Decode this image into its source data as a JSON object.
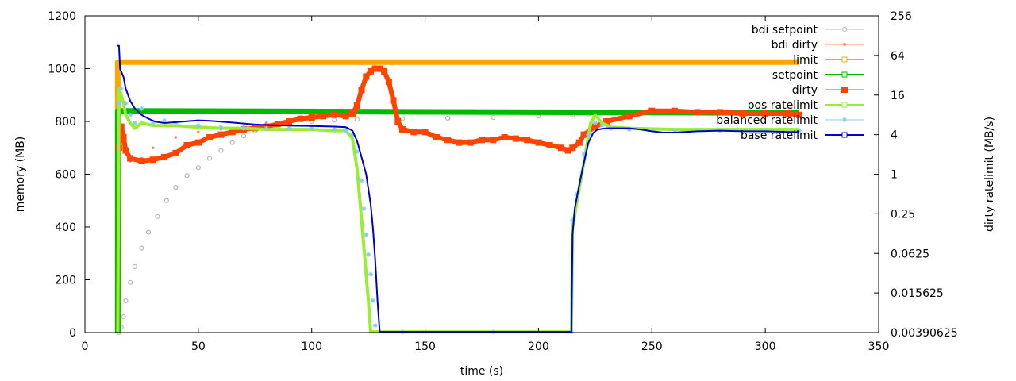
{
  "chart_data": {
    "type": "line",
    "title": "",
    "xlabel": "time (s)",
    "ylabel": "memory (MB)",
    "y2label": "dirty ratelimit (MB/s)",
    "xlim": [
      0,
      350
    ],
    "ylim": [
      0,
      1200
    ],
    "y2lim": [
      0.00390625,
      256
    ],
    "y2scale": "log2",
    "grid": false,
    "legend_position": "top-right",
    "xticks": [
      "0",
      "50",
      "100",
      "150",
      "200",
      "250",
      "300",
      "350"
    ],
    "yticks": [
      "0",
      "200",
      "400",
      "600",
      "800",
      "1000",
      "1200"
    ],
    "y2ticks": [
      "0.00390625",
      "0.015625",
      "0.0625",
      "0.25",
      "1",
      "4",
      "16",
      "64",
      "256"
    ],
    "series": [
      {
        "name": "bdi setpoint",
        "axis": "y",
        "color": "#b8b8b8",
        "style": "circles",
        "points": [
          [
            15,
            0
          ],
          [
            16,
            20
          ],
          [
            17,
            60
          ],
          [
            18,
            120
          ],
          [
            20,
            190
          ],
          [
            22,
            250
          ],
          [
            25,
            320
          ],
          [
            28,
            380
          ],
          [
            32,
            440
          ],
          [
            36,
            500
          ],
          [
            40,
            550
          ],
          [
            45,
            595
          ],
          [
            50,
            625
          ],
          [
            55,
            660
          ],
          [
            60,
            690
          ],
          [
            65,
            720
          ],
          [
            70,
            745
          ],
          [
            75,
            765
          ],
          [
            80,
            775
          ],
          [
            90,
            790
          ],
          [
            100,
            800
          ],
          [
            110,
            805
          ],
          [
            120,
            808
          ],
          [
            140,
            810
          ],
          [
            160,
            812
          ],
          [
            180,
            815
          ],
          [
            200,
            820
          ],
          [
            215,
            825
          ],
          [
            222,
            828
          ]
        ]
      },
      {
        "name": "bdi dirty",
        "axis": "y",
        "color": "#ff8866",
        "style": "points",
        "points": [
          [
            15,
            650
          ],
          [
            17,
            700
          ],
          [
            20,
            650
          ],
          [
            25,
            660
          ],
          [
            30,
            700
          ],
          [
            40,
            740
          ],
          [
            50,
            760
          ],
          [
            60,
            770
          ],
          [
            70,
            780
          ],
          [
            80,
            795
          ]
        ]
      },
      {
        "name": "limit",
        "axis": "y",
        "color": "#ffa500",
        "style": "line",
        "points": [
          [
            14.5,
            0
          ],
          [
            14.5,
            1025
          ],
          [
            315,
            1025
          ]
        ]
      },
      {
        "name": "setpoint",
        "axis": "y",
        "color": "#00bb00",
        "style": "line",
        "points": [
          [
            14.5,
            0
          ],
          [
            14.5,
            320
          ],
          [
            14.5,
            840
          ],
          [
            315,
            832
          ]
        ]
      },
      {
        "name": "dirty",
        "axis": "y",
        "color": "#ff4400",
        "style": "squares",
        "points": [
          [
            15,
            700
          ],
          [
            16,
            780
          ],
          [
            17,
            740
          ],
          [
            18,
            690
          ],
          [
            20,
            660
          ],
          [
            25,
            650
          ],
          [
            30,
            655
          ],
          [
            35,
            665
          ],
          [
            40,
            680
          ],
          [
            45,
            710
          ],
          [
            50,
            720
          ],
          [
            55,
            740
          ],
          [
            60,
            750
          ],
          [
            65,
            760
          ],
          [
            70,
            770
          ],
          [
            75,
            775
          ],
          [
            80,
            780
          ],
          [
            85,
            790
          ],
          [
            90,
            800
          ],
          [
            95,
            810
          ],
          [
            100,
            815
          ],
          [
            105,
            820
          ],
          [
            110,
            825
          ],
          [
            115,
            820
          ],
          [
            118,
            830
          ],
          [
            120,
            860
          ],
          [
            122,
            920
          ],
          [
            124,
            970
          ],
          [
            126,
            990
          ],
          [
            128,
            1000
          ],
          [
            130,
            1000
          ],
          [
            132,
            990
          ],
          [
            134,
            950
          ],
          [
            136,
            880
          ],
          [
            138,
            800
          ],
          [
            140,
            770
          ],
          [
            145,
            760
          ],
          [
            150,
            760
          ],
          [
            155,
            740
          ],
          [
            160,
            730
          ],
          [
            165,
            720
          ],
          [
            170,
            720
          ],
          [
            175,
            730
          ],
          [
            180,
            730
          ],
          [
            185,
            740
          ],
          [
            190,
            735
          ],
          [
            195,
            730
          ],
          [
            200,
            720
          ],
          [
            205,
            710
          ],
          [
            210,
            700
          ],
          [
            213,
            690
          ],
          [
            215,
            700
          ],
          [
            218,
            720
          ],
          [
            220,
            750
          ],
          [
            225,
            780
          ],
          [
            230,
            800
          ],
          [
            240,
            820
          ],
          [
            250,
            840
          ],
          [
            260,
            840
          ],
          [
            270,
            835
          ],
          [
            280,
            835
          ],
          [
            290,
            830
          ],
          [
            300,
            830
          ],
          [
            310,
            830
          ],
          [
            315,
            825
          ]
        ]
      },
      {
        "name": "pos ratelimit",
        "axis": "y2",
        "color": "#99ee33",
        "style": "line",
        "points": [
          [
            14.5,
            0.004
          ],
          [
            15,
            20
          ],
          [
            16,
            16
          ],
          [
            17,
            12
          ],
          [
            18,
            8
          ],
          [
            20,
            6
          ],
          [
            22,
            5
          ],
          [
            25,
            6
          ],
          [
            30,
            5.5
          ],
          [
            40,
            5.5
          ],
          [
            50,
            5.2
          ],
          [
            60,
            5
          ],
          [
            70,
            5
          ],
          [
            80,
            4.8
          ],
          [
            90,
            4.8
          ],
          [
            100,
            4.8
          ],
          [
            110,
            4.6
          ],
          [
            115,
            4.6
          ],
          [
            118,
            3.5
          ],
          [
            120,
            1.2
          ],
          [
            121,
            0.5
          ],
          [
            122,
            0.2
          ],
          [
            123,
            0.08
          ],
          [
            124,
            0.03
          ],
          [
            125,
            0.012
          ],
          [
            126,
            0.004
          ],
          [
            140,
            0.004
          ],
          [
            180,
            0.004
          ],
          [
            214.5,
            0.004
          ],
          [
            215,
            0.15
          ],
          [
            217,
            0.4
          ],
          [
            220,
            1.5
          ],
          [
            223,
            6
          ],
          [
            225,
            8
          ],
          [
            228,
            6
          ],
          [
            232,
            5.2
          ],
          [
            240,
            5
          ],
          [
            260,
            4.8
          ],
          [
            280,
            4.8
          ],
          [
            300,
            4.8
          ],
          [
            315,
            4.8
          ]
        ]
      },
      {
        "name": "balanced ratelimit",
        "axis": "y2",
        "color": "#88ccee",
        "style": "stars",
        "points": [
          [
            15,
            12
          ],
          [
            16,
            20
          ],
          [
            18,
            12
          ],
          [
            20,
            8
          ],
          [
            22,
            6
          ],
          [
            25,
            10
          ],
          [
            30,
            6
          ],
          [
            35,
            6.5
          ],
          [
            40,
            6
          ],
          [
            50,
            5.5
          ],
          [
            60,
            5.2
          ],
          [
            70,
            5
          ],
          [
            80,
            5
          ],
          [
            90,
            5
          ],
          [
            100,
            5
          ],
          [
            110,
            4.8
          ],
          [
            115,
            4.6
          ],
          [
            118,
            4
          ],
          [
            120,
            2.2
          ],
          [
            122,
            0.8
          ],
          [
            123,
            0.3
          ],
          [
            124,
            0.12
          ],
          [
            125,
            0.06
          ],
          [
            126,
            0.03
          ],
          [
            127,
            0.012
          ],
          [
            128,
            0.005
          ],
          [
            140,
            0.004
          ],
          [
            180,
            0.004
          ],
          [
            214.5,
            0.004
          ],
          [
            215,
            0.2
          ],
          [
            217,
            0.5
          ],
          [
            220,
            2
          ],
          [
            222,
            4
          ],
          [
            225,
            6
          ],
          [
            228,
            5.5
          ],
          [
            232,
            5
          ],
          [
            240,
            4.8
          ],
          [
            260,
            4.6
          ],
          [
            280,
            4.6
          ],
          [
            300,
            4.6
          ],
          [
            315,
            4.6
          ]
        ]
      },
      {
        "name": "base ratelimit",
        "axis": "y2",
        "color": "#0000cc",
        "style": "line",
        "points": [
          [
            14,
            90
          ],
          [
            15,
            90
          ],
          [
            15.5,
            40
          ],
          [
            17,
            30
          ],
          [
            18,
            20
          ],
          [
            20,
            13
          ],
          [
            22,
            10
          ],
          [
            25,
            8
          ],
          [
            28,
            7
          ],
          [
            31,
            6.3
          ],
          [
            35,
            6
          ],
          [
            40,
            6.2
          ],
          [
            45,
            6.4
          ],
          [
            50,
            6.6
          ],
          [
            55,
            6.5
          ],
          [
            60,
            6.3
          ],
          [
            65,
            6.1
          ],
          [
            70,
            5.9
          ],
          [
            75,
            5.7
          ],
          [
            80,
            5.6
          ],
          [
            90,
            5.5
          ],
          [
            100,
            5.4
          ],
          [
            110,
            5.3
          ],
          [
            115,
            5.2
          ],
          [
            118,
            4.6
          ],
          [
            120,
            3.2
          ],
          [
            122,
            1.8
          ],
          [
            124,
            1.0
          ],
          [
            125,
            0.6
          ],
          [
            126,
            0.35
          ],
          [
            127,
            0.15
          ],
          [
            128,
            0.05
          ],
          [
            129,
            0.012
          ],
          [
            130,
            0.004
          ],
          [
            160,
            0.004
          ],
          [
            200,
            0.004
          ],
          [
            214.5,
            0.004
          ],
          [
            215,
            0.12
          ],
          [
            216,
            0.3
          ],
          [
            218,
            0.7
          ],
          [
            220,
            1.5
          ],
          [
            222,
            3
          ],
          [
            224,
            4.2
          ],
          [
            226,
            4.8
          ],
          [
            230,
            5.0
          ],
          [
            240,
            5.0
          ],
          [
            245,
            4.8
          ],
          [
            250,
            4.5
          ],
          [
            255,
            4.3
          ],
          [
            260,
            4.3
          ],
          [
            270,
            4.5
          ],
          [
            280,
            4.6
          ],
          [
            290,
            4.5
          ],
          [
            300,
            4.5
          ],
          [
            310,
            4.4
          ],
          [
            315,
            4.4
          ]
        ]
      }
    ]
  }
}
